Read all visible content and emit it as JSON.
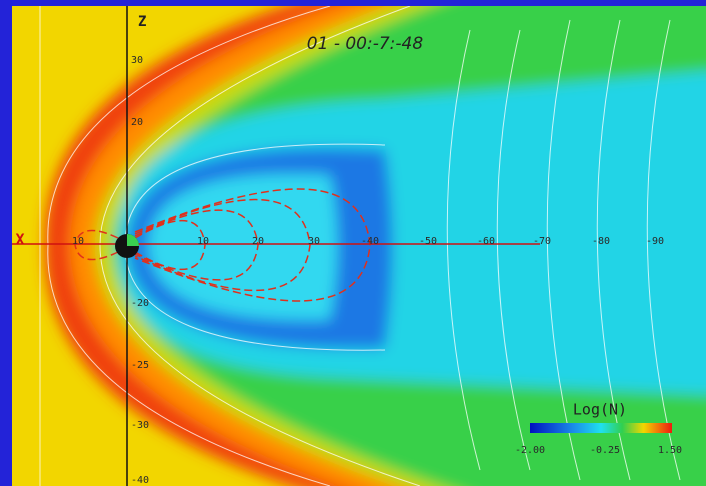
{
  "timestamp": "01 - 00:-7:-48",
  "axes": {
    "z_label": "Z",
    "x_label": "X",
    "x_ticks": [
      "10",
      "10",
      "20",
      "30",
      "-40",
      "-50",
      "-60",
      "-70",
      "-80",
      "-90"
    ],
    "z_ticks": [
      "30",
      "20",
      "-20",
      "-25",
      "-30",
      "-40"
    ]
  },
  "colorbar": {
    "title": "Log(N)",
    "labels": [
      "-2.00",
      "-0.25",
      "1.50"
    ]
  }
}
